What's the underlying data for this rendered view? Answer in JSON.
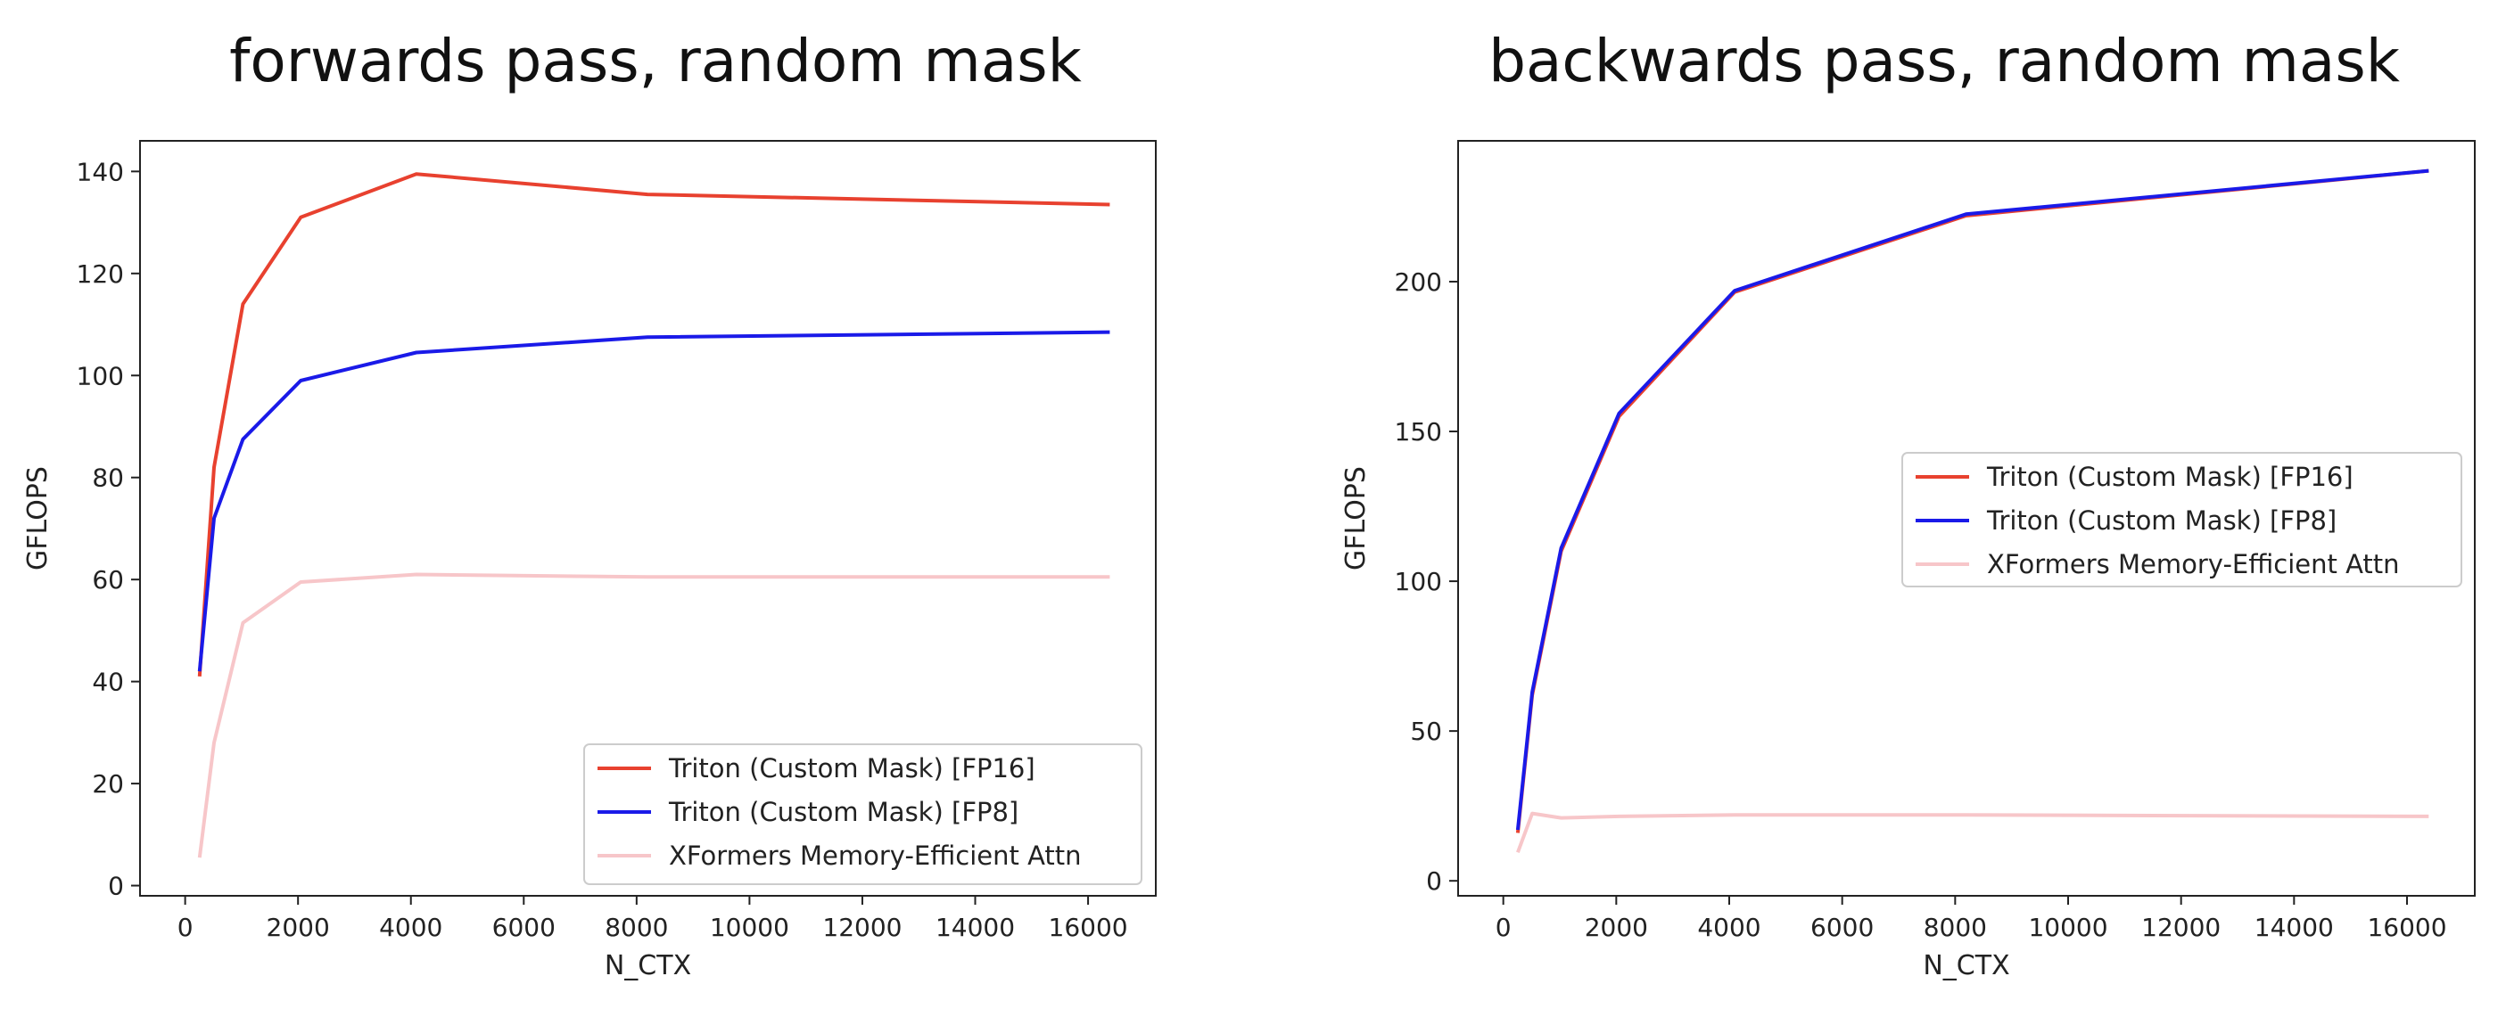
{
  "chart_data": [
    {
      "type": "line",
      "title": "forwards pass, random mask",
      "xlabel": "N_CTX",
      "ylabel": "GFLOPS",
      "xlim": [
        -800,
        17200
      ],
      "ylim": [
        -2,
        146
      ],
      "xticks": [
        0,
        2000,
        4000,
        6000,
        8000,
        10000,
        12000,
        14000,
        16000
      ],
      "yticks": [
        0,
        20,
        40,
        60,
        80,
        100,
        120,
        140
      ],
      "grid": false,
      "legend": "lower-right",
      "series": [
        {
          "name": "Triton (Custom Mask) [FP16]",
          "color": "#e8412f",
          "x": [
            256,
            512,
            1024,
            2048,
            4096,
            8192,
            16384
          ],
          "y": [
            41,
            82,
            114,
            131,
            139.5,
            135.5,
            133.5
          ]
        },
        {
          "name": "Triton (Custom Mask) [FP8]",
          "color": "#1a1ae8",
          "x": [
            256,
            512,
            1024,
            2048,
            4096,
            8192,
            16384
          ],
          "y": [
            42,
            72,
            87.5,
            99,
            104.5,
            107.5,
            108.5
          ]
        },
        {
          "name": "XFormers Memory-Efficient Attn",
          "color": "#f7c6c9",
          "x": [
            256,
            512,
            1024,
            2048,
            4096,
            8192,
            16384
          ],
          "y": [
            5.5,
            28,
            51.5,
            59.5,
            61,
            60.5,
            60.5
          ]
        }
      ]
    },
    {
      "type": "line",
      "title": "backwards pass, random mask",
      "xlabel": "N_CTX",
      "ylabel": "GFLOPS",
      "xlim": [
        -800,
        17200
      ],
      "ylim": [
        -5,
        247
      ],
      "xticks": [
        0,
        2000,
        4000,
        6000,
        8000,
        10000,
        12000,
        14000,
        16000
      ],
      "yticks": [
        0,
        50,
        100,
        150,
        200
      ],
      "grid": false,
      "legend": "center-right",
      "series": [
        {
          "name": "Triton (Custom Mask) [FP16]",
          "color": "#e8412f",
          "x": [
            256,
            512,
            1024,
            2048,
            4096,
            8192,
            16384
          ],
          "y": [
            16,
            62,
            110,
            155,
            196.5,
            222,
            237
          ]
        },
        {
          "name": "Triton (Custom Mask) [FP8]",
          "color": "#1a1ae8",
          "x": [
            256,
            512,
            1024,
            2048,
            4096,
            8192,
            16384
          ],
          "y": [
            17,
            63,
            111,
            156,
            197,
            222.5,
            237
          ]
        },
        {
          "name": "XFormers Memory-Efficient Attn",
          "color": "#f7c6c9",
          "x": [
            256,
            512,
            1024,
            2048,
            4096,
            8192,
            16384
          ],
          "y": [
            9.5,
            22.5,
            21,
            21.5,
            22,
            22,
            21.5
          ]
        }
      ]
    }
  ]
}
